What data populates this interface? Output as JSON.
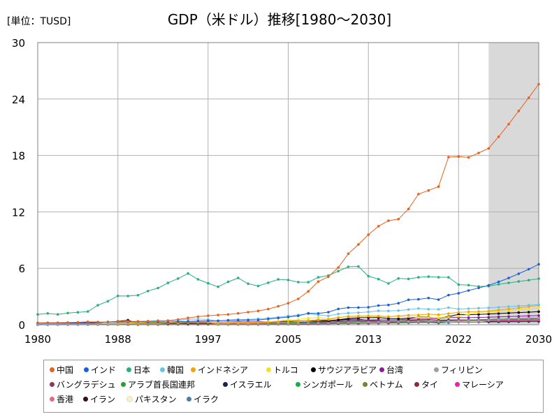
{
  "unit_label": "[単位：TUSD]",
  "chart_data": {
    "type": "line",
    "title": "GDP（米ドル）推移[1980～2030]",
    "xlabel": "",
    "ylabel": "",
    "xlim": [
      1980,
      2030
    ],
    "ylim": [
      0,
      30
    ],
    "xticks": [
      "1980",
      "1988",
      "1997",
      "2005",
      "2013",
      "2022",
      "2030"
    ],
    "xtick_values": [
      1980,
      1988,
      1997,
      2005,
      2013,
      2022,
      2030
    ],
    "yticks": [
      "0",
      "6",
      "12",
      "18",
      "24",
      "30"
    ],
    "ytick_values": [
      0,
      6,
      12,
      18,
      24,
      30
    ],
    "grid": true,
    "forecast_start": 2025,
    "legend_position": "bottom",
    "x": [
      1980,
      1981,
      1982,
      1983,
      1984,
      1985,
      1986,
      1987,
      1988,
      1989,
      1990,
      1991,
      1992,
      1993,
      1994,
      1995,
      1996,
      1997,
      1998,
      1999,
      2000,
      2001,
      2002,
      2003,
      2004,
      2005,
      2006,
      2007,
      2008,
      2009,
      2010,
      2011,
      2012,
      2013,
      2014,
      2015,
      2016,
      2017,
      2018,
      2019,
      2020,
      2021,
      2022,
      2023,
      2024,
      2025,
      2026,
      2027,
      2028,
      2029,
      2030
    ],
    "series": [
      {
        "name": "中国",
        "color": "#e8601c",
        "values": [
          0.19,
          0.2,
          0.21,
          0.23,
          0.26,
          0.31,
          0.3,
          0.27,
          0.31,
          0.35,
          0.36,
          0.38,
          0.43,
          0.44,
          0.56,
          0.73,
          0.86,
          0.96,
          1.03,
          1.09,
          1.21,
          1.34,
          1.47,
          1.66,
          1.96,
          2.29,
          2.75,
          3.55,
          4.59,
          5.1,
          6.09,
          7.55,
          8.53,
          9.57,
          10.48,
          11.06,
          11.23,
          12.31,
          13.89,
          14.28,
          14.69,
          17.82,
          17.88,
          17.79,
          18.27,
          18.75,
          19.99,
          21.33,
          22.73,
          24.14,
          25.58
        ]
      },
      {
        "name": "インド",
        "color": "#1b5fd6",
        "values": [
          0.19,
          0.2,
          0.2,
          0.22,
          0.21,
          0.23,
          0.25,
          0.28,
          0.3,
          0.3,
          0.32,
          0.27,
          0.29,
          0.28,
          0.33,
          0.36,
          0.39,
          0.42,
          0.42,
          0.46,
          0.47,
          0.49,
          0.51,
          0.61,
          0.71,
          0.82,
          0.94,
          1.22,
          1.2,
          1.34,
          1.68,
          1.82,
          1.83,
          1.86,
          2.04,
          2.1,
          2.29,
          2.65,
          2.7,
          2.84,
          2.67,
          3.15,
          3.35,
          3.64,
          3.91,
          4.19,
          4.56,
          4.97,
          5.42,
          5.9,
          6.43
        ]
      },
      {
        "name": "日本",
        "color": "#2aaf7f",
        "values": [
          1.1,
          1.2,
          1.1,
          1.24,
          1.32,
          1.4,
          2.07,
          2.5,
          3.07,
          3.05,
          3.13,
          3.58,
          3.9,
          4.45,
          4.91,
          5.45,
          4.83,
          4.41,
          4.03,
          4.56,
          4.97,
          4.36,
          4.12,
          4.46,
          4.82,
          4.76,
          4.53,
          4.52,
          5.04,
          5.23,
          5.7,
          6.16,
          6.2,
          5.16,
          4.85,
          4.39,
          4.92,
          4.87,
          5.04,
          5.12,
          5.05,
          5.04,
          4.26,
          4.21,
          4.07,
          4.1,
          4.3,
          4.45,
          4.6,
          4.74,
          4.89
        ]
      },
      {
        "name": "韓国",
        "color": "#66c3ea",
        "values": [
          0.07,
          0.07,
          0.08,
          0.09,
          0.1,
          0.1,
          0.12,
          0.15,
          0.2,
          0.25,
          0.28,
          0.33,
          0.36,
          0.39,
          0.46,
          0.57,
          0.6,
          0.56,
          0.38,
          0.5,
          0.58,
          0.55,
          0.63,
          0.7,
          0.79,
          0.93,
          1.05,
          1.17,
          1.05,
          0.94,
          1.14,
          1.25,
          1.28,
          1.37,
          1.48,
          1.47,
          1.5,
          1.62,
          1.72,
          1.65,
          1.64,
          1.82,
          1.67,
          1.71,
          1.76,
          1.79,
          1.86,
          1.93,
          2.0,
          2.07,
          2.14
        ]
      },
      {
        "name": "インドネシア",
        "color": "#f4a300",
        "values": [
          0.1,
          0.11,
          0.11,
          0.1,
          0.1,
          0.1,
          0.09,
          0.09,
          0.1,
          0.11,
          0.13,
          0.14,
          0.15,
          0.18,
          0.2,
          0.22,
          0.25,
          0.24,
          0.11,
          0.16,
          0.17,
          0.16,
          0.2,
          0.24,
          0.26,
          0.29,
          0.36,
          0.43,
          0.51,
          0.54,
          0.76,
          0.89,
          0.92,
          0.91,
          0.89,
          0.86,
          0.93,
          1.02,
          1.04,
          1.12,
          1.06,
          1.19,
          1.32,
          1.37,
          1.4,
          1.44,
          1.55,
          1.67,
          1.8,
          1.93,
          2.07
        ]
      },
      {
        "name": "トルコ",
        "color": "#f7e11c",
        "values": [
          0.1,
          0.1,
          0.09,
          0.09,
          0.09,
          0.1,
          0.11,
          0.12,
          0.13,
          0.15,
          0.21,
          0.2,
          0.21,
          0.24,
          0.18,
          0.23,
          0.24,
          0.25,
          0.27,
          0.25,
          0.27,
          0.2,
          0.24,
          0.31,
          0.4,
          0.5,
          0.55,
          0.68,
          0.77,
          0.65,
          0.78,
          0.84,
          0.88,
          0.96,
          0.94,
          0.87,
          0.87,
          0.86,
          0.78,
          0.76,
          0.72,
          0.82,
          0.91,
          1.11,
          1.32,
          1.35,
          1.43,
          1.52,
          1.61,
          1.7,
          1.8
        ]
      },
      {
        "name": "サウジアラビア",
        "color": "#000000",
        "values": [
          0.16,
          0.18,
          0.15,
          0.13,
          0.12,
          0.1,
          0.09,
          0.09,
          0.09,
          0.1,
          0.12,
          0.13,
          0.14,
          0.13,
          0.14,
          0.14,
          0.16,
          0.17,
          0.15,
          0.16,
          0.19,
          0.18,
          0.19,
          0.22,
          0.26,
          0.33,
          0.38,
          0.42,
          0.52,
          0.43,
          0.53,
          0.67,
          0.74,
          0.75,
          0.76,
          0.67,
          0.64,
          0.69,
          0.82,
          0.8,
          0.7,
          0.87,
          1.11,
          1.07,
          1.1,
          1.14,
          1.19,
          1.24,
          1.29,
          1.34,
          1.39
        ]
      },
      {
        "name": "台湾",
        "color": "#8e1a98",
        "values": [
          0.04,
          0.05,
          0.05,
          0.05,
          0.06,
          0.06,
          0.08,
          0.1,
          0.13,
          0.15,
          0.17,
          0.19,
          0.22,
          0.23,
          0.25,
          0.27,
          0.29,
          0.3,
          0.28,
          0.3,
          0.33,
          0.3,
          0.31,
          0.32,
          0.35,
          0.38,
          0.39,
          0.41,
          0.42,
          0.39,
          0.44,
          0.48,
          0.5,
          0.51,
          0.53,
          0.53,
          0.54,
          0.59,
          0.61,
          0.61,
          0.67,
          0.77,
          0.76,
          0.75,
          0.78,
          0.8,
          0.84,
          0.87,
          0.9,
          0.94,
          0.97
        ]
      },
      {
        "name": "フィリピン",
        "color": "#9aa0a6",
        "values": [
          0.03,
          0.04,
          0.04,
          0.03,
          0.03,
          0.03,
          0.03,
          0.04,
          0.04,
          0.04,
          0.05,
          0.05,
          0.05,
          0.05,
          0.06,
          0.07,
          0.08,
          0.08,
          0.07,
          0.08,
          0.08,
          0.08,
          0.08,
          0.08,
          0.09,
          0.1,
          0.12,
          0.15,
          0.17,
          0.17,
          0.21,
          0.23,
          0.26,
          0.28,
          0.28,
          0.31,
          0.32,
          0.33,
          0.35,
          0.38,
          0.36,
          0.39,
          0.4,
          0.44,
          0.46,
          0.49,
          0.53,
          0.57,
          0.61,
          0.65,
          0.7
        ]
      },
      {
        "name": "バングラデシュ",
        "color": "#8a3b5c",
        "values": [
          0.02,
          0.02,
          0.02,
          0.02,
          0.02,
          0.02,
          0.02,
          0.03,
          0.03,
          0.03,
          0.03,
          0.03,
          0.03,
          0.03,
          0.04,
          0.04,
          0.04,
          0.05,
          0.05,
          0.05,
          0.05,
          0.05,
          0.05,
          0.06,
          0.06,
          0.07,
          0.07,
          0.08,
          0.09,
          0.1,
          0.12,
          0.13,
          0.13,
          0.15,
          0.17,
          0.2,
          0.27,
          0.29,
          0.32,
          0.35,
          0.37,
          0.42,
          0.46,
          0.44,
          0.45,
          0.47,
          0.5,
          0.54,
          0.58,
          0.63,
          0.68
        ]
      },
      {
        "name": "アラブ首長国連邦",
        "color": "#26a032",
        "values": [
          0.04,
          0.05,
          0.05,
          0.04,
          0.04,
          0.04,
          0.03,
          0.04,
          0.04,
          0.04,
          0.05,
          0.05,
          0.05,
          0.05,
          0.05,
          0.06,
          0.07,
          0.07,
          0.07,
          0.08,
          0.1,
          0.1,
          0.11,
          0.12,
          0.15,
          0.18,
          0.22,
          0.26,
          0.32,
          0.25,
          0.29,
          0.35,
          0.37,
          0.39,
          0.4,
          0.36,
          0.36,
          0.39,
          0.42,
          0.42,
          0.36,
          0.42,
          0.51,
          0.5,
          0.53,
          0.55,
          0.58,
          0.61,
          0.64,
          0.67,
          0.7
        ]
      },
      {
        "name": "イスラエル",
        "color": "#1a2450",
        "values": [
          0.02,
          0.03,
          0.03,
          0.03,
          0.03,
          0.03,
          0.03,
          0.04,
          0.05,
          0.05,
          0.06,
          0.07,
          0.07,
          0.08,
          0.08,
          0.1,
          0.11,
          0.11,
          0.11,
          0.11,
          0.13,
          0.13,
          0.12,
          0.13,
          0.13,
          0.14,
          0.15,
          0.17,
          0.21,
          0.21,
          0.23,
          0.26,
          0.26,
          0.29,
          0.31,
          0.3,
          0.32,
          0.36,
          0.37,
          0.4,
          0.41,
          0.49,
          0.52,
          0.51,
          0.53,
          0.56,
          0.59,
          0.62,
          0.65,
          0.68,
          0.71
        ]
      },
      {
        "name": "シンガポール",
        "color": "#0fb04a",
        "values": [
          0.01,
          0.01,
          0.02,
          0.02,
          0.02,
          0.02,
          0.02,
          0.02,
          0.03,
          0.03,
          0.04,
          0.04,
          0.05,
          0.06,
          0.07,
          0.09,
          0.1,
          0.1,
          0.09,
          0.09,
          0.1,
          0.09,
          0.09,
          0.1,
          0.12,
          0.13,
          0.15,
          0.18,
          0.19,
          0.19,
          0.24,
          0.28,
          0.3,
          0.31,
          0.31,
          0.31,
          0.32,
          0.34,
          0.38,
          0.38,
          0.35,
          0.43,
          0.5,
          0.5,
          0.53,
          0.55,
          0.57,
          0.59,
          0.61,
          0.63,
          0.66
        ]
      },
      {
        "name": "ベトナム",
        "color": "#7c8033",
        "values": [
          0.03,
          0.03,
          0.03,
          0.03,
          0.03,
          0.02,
          0.02,
          0.02,
          0.02,
          0.02,
          0.01,
          0.01,
          0.01,
          0.02,
          0.02,
          0.02,
          0.02,
          0.03,
          0.03,
          0.03,
          0.03,
          0.03,
          0.04,
          0.04,
          0.05,
          0.06,
          0.07,
          0.08,
          0.1,
          0.11,
          0.12,
          0.14,
          0.16,
          0.17,
          0.19,
          0.19,
          0.21,
          0.22,
          0.25,
          0.26,
          0.27,
          0.37,
          0.41,
          0.43,
          0.46,
          0.49,
          0.53,
          0.57,
          0.61,
          0.65,
          0.7
        ]
      },
      {
        "name": "タイ",
        "color": "#8e2a3b",
        "values": [
          0.03,
          0.04,
          0.04,
          0.04,
          0.04,
          0.04,
          0.04,
          0.05,
          0.06,
          0.07,
          0.09,
          0.1,
          0.11,
          0.13,
          0.14,
          0.17,
          0.18,
          0.15,
          0.11,
          0.13,
          0.13,
          0.12,
          0.13,
          0.15,
          0.17,
          0.19,
          0.22,
          0.26,
          0.29,
          0.28,
          0.34,
          0.37,
          0.4,
          0.42,
          0.41,
          0.4,
          0.41,
          0.46,
          0.51,
          0.54,
          0.5,
          0.51,
          0.5,
          0.51,
          0.53,
          0.55,
          0.57,
          0.6,
          0.62,
          0.65,
          0.68
        ]
      },
      {
        "name": "マレーシア",
        "color": "#ee20a5",
        "values": [
          0.02,
          0.03,
          0.03,
          0.03,
          0.03,
          0.03,
          0.03,
          0.03,
          0.04,
          0.04,
          0.04,
          0.05,
          0.06,
          0.07,
          0.07,
          0.09,
          0.1,
          0.1,
          0.07,
          0.08,
          0.09,
          0.09,
          0.1,
          0.11,
          0.12,
          0.14,
          0.16,
          0.19,
          0.23,
          0.2,
          0.26,
          0.3,
          0.31,
          0.32,
          0.34,
          0.3,
          0.3,
          0.32,
          0.36,
          0.37,
          0.34,
          0.37,
          0.41,
          0.4,
          0.42,
          0.44,
          0.47,
          0.5,
          0.53,
          0.56,
          0.59
        ]
      },
      {
        "name": "香港",
        "color": "#e56a7a",
        "values": [
          0.03,
          0.03,
          0.03,
          0.03,
          0.03,
          0.04,
          0.04,
          0.05,
          0.06,
          0.07,
          0.08,
          0.09,
          0.1,
          0.12,
          0.13,
          0.14,
          0.16,
          0.18,
          0.17,
          0.16,
          0.17,
          0.17,
          0.17,
          0.16,
          0.17,
          0.18,
          0.19,
          0.21,
          0.22,
          0.21,
          0.23,
          0.25,
          0.26,
          0.28,
          0.29,
          0.31,
          0.32,
          0.34,
          0.36,
          0.36,
          0.34,
          0.37,
          0.36,
          0.38,
          0.39,
          0.41,
          0.43,
          0.44,
          0.46,
          0.48,
          0.5
        ]
      },
      {
        "name": "イラン",
        "color": "#3b0d1c",
        "values": [
          0.1,
          0.11,
          0.13,
          0.16,
          0.17,
          0.18,
          0.21,
          0.29,
          0.35,
          0.49,
          0.12,
          0.13,
          0.12,
          0.08,
          0.07,
          0.1,
          0.12,
          0.12,
          0.11,
          0.12,
          0.11,
          0.13,
          0.13,
          0.15,
          0.18,
          0.21,
          0.24,
          0.3,
          0.35,
          0.36,
          0.49,
          0.58,
          0.6,
          0.47,
          0.43,
          0.38,
          0.4,
          0.44,
          0.31,
          0.26,
          0.24,
          0.36,
          0.41,
          0.4,
          0.44,
          0.34,
          0.35,
          0.36,
          0.37,
          0.38,
          0.39
        ]
      },
      {
        "name": "パキスタン",
        "color": "#f7f0d2",
        "values": [
          0.03,
          0.03,
          0.04,
          0.04,
          0.04,
          0.04,
          0.04,
          0.04,
          0.04,
          0.04,
          0.05,
          0.05,
          0.05,
          0.05,
          0.06,
          0.06,
          0.07,
          0.07,
          0.07,
          0.07,
          0.08,
          0.08,
          0.08,
          0.09,
          0.1,
          0.12,
          0.14,
          0.15,
          0.17,
          0.17,
          0.18,
          0.21,
          0.22,
          0.23,
          0.24,
          0.27,
          0.28,
          0.3,
          0.31,
          0.28,
          0.3,
          0.35,
          0.38,
          0.34,
          0.37,
          0.39,
          0.41,
          0.44,
          0.47,
          0.5,
          0.53
        ]
      },
      {
        "name": "イラク",
        "color": "#4a7fa8",
        "values": [
          0.05,
          0.04,
          0.04,
          0.05,
          0.05,
          0.05,
          0.05,
          0.05,
          0.06,
          0.06,
          0.18,
          0.05,
          0.04,
          0.04,
          0.03,
          0.03,
          0.03,
          0.03,
          0.03,
          0.03,
          0.03,
          0.03,
          0.02,
          0.02,
          0.04,
          0.05,
          0.06,
          0.09,
          0.13,
          0.11,
          0.14,
          0.19,
          0.22,
          0.23,
          0.23,
          0.17,
          0.17,
          0.19,
          0.22,
          0.23,
          0.18,
          0.21,
          0.29,
          0.25,
          0.26,
          0.27,
          0.28,
          0.29,
          0.3,
          0.31,
          0.32
        ]
      }
    ]
  }
}
